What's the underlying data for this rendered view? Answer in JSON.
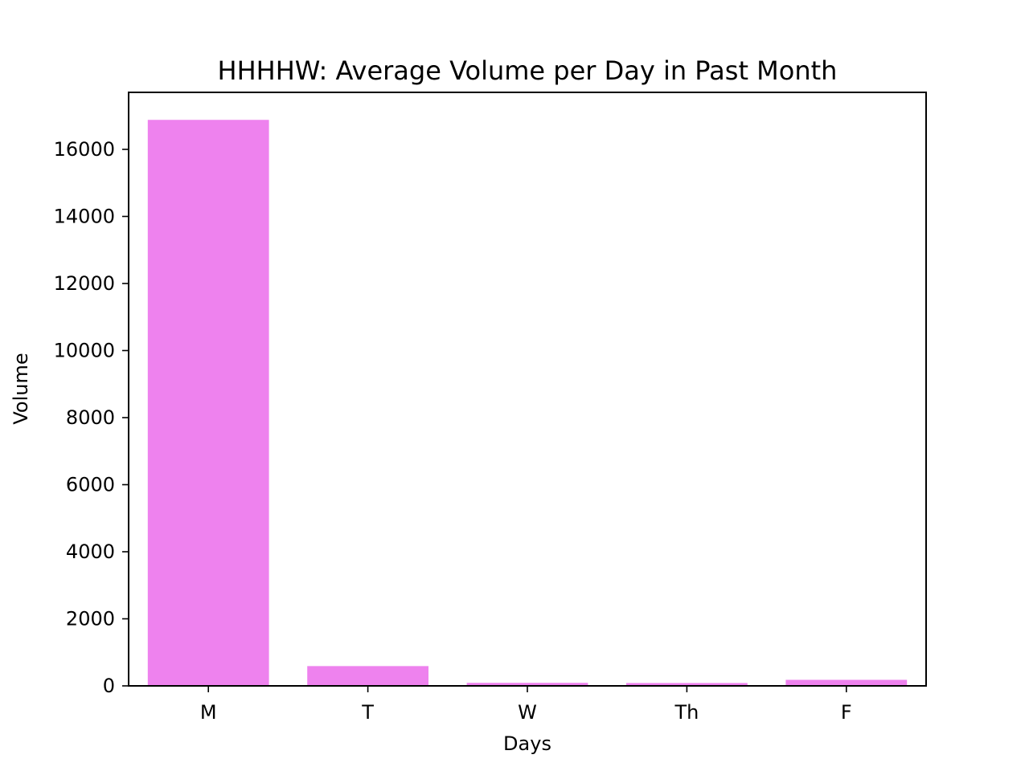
{
  "chart_data": {
    "type": "bar",
    "title": "HHHHW: Average Volume per Day in Past Month",
    "xlabel": "Days",
    "ylabel": "Volume",
    "categories": [
      "M",
      "T",
      "W",
      "Th",
      "F"
    ],
    "values": [
      16880,
      590,
      90,
      85,
      180
    ],
    "ylim": [
      0,
      17700
    ],
    "yticks": [
      0,
      2000,
      4000,
      6000,
      8000,
      10000,
      12000,
      14000,
      16000
    ],
    "bar_color": "#ee82ee",
    "grid": false,
    "legend": "none"
  }
}
